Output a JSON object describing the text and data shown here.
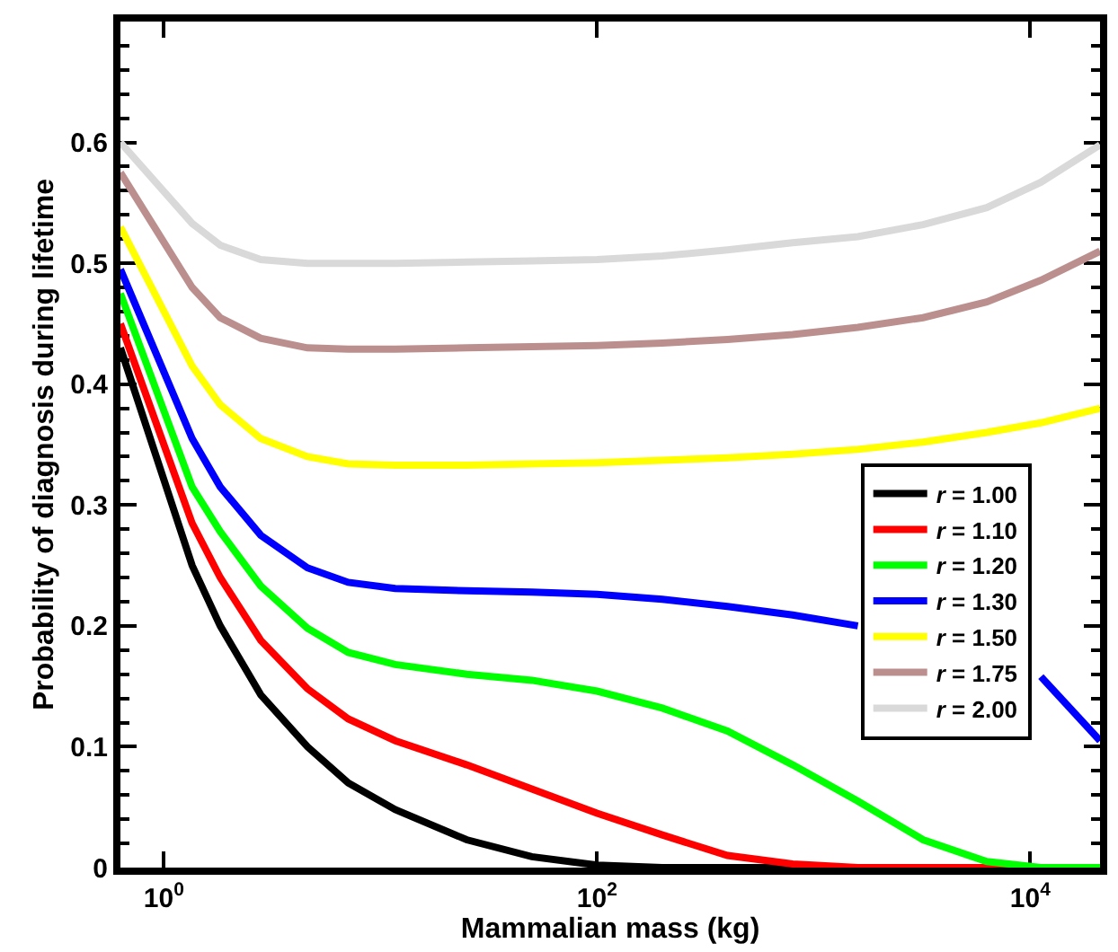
{
  "chart_data": {
    "type": "line",
    "xlabel": "Mammalian mass (kg)",
    "ylabel": "Probability of diagnosis during lifetime",
    "x": [
      0.63,
      1.35,
      1.82,
      2.8,
      4.6,
      7.1,
      11.7,
      25,
      50,
      100,
      200,
      400,
      800,
      1600,
      3200,
      6300,
      11200,
      21000
    ],
    "series": [
      {
        "name": "r = 1.00",
        "color": "#000000",
        "values": [
          0.43,
          0.25,
          0.2,
          0.143,
          0.1,
          0.07,
          0.048,
          0.023,
          0.009,
          0.002,
          0,
          0,
          0,
          0,
          0,
          0,
          0,
          0
        ]
      },
      {
        "name": "r = 1.10",
        "color": "#ff0000",
        "values": [
          0.45,
          0.285,
          0.24,
          0.188,
          0.148,
          0.123,
          0.105,
          0.085,
          0.065,
          0.045,
          0.027,
          0.01,
          0.003,
          0,
          0,
          0,
          0,
          0
        ]
      },
      {
        "name": "r = 1.20",
        "color": "#00ff00",
        "values": [
          0.475,
          0.315,
          0.278,
          0.233,
          0.198,
          0.178,
          0.168,
          0.16,
          0.155,
          0.146,
          0.132,
          0.113,
          0.085,
          0.055,
          0.023,
          0.005,
          0,
          0
        ]
      },
      {
        "name": "r = 1.30",
        "color": "#0000ff",
        "values": [
          0.495,
          0.355,
          0.315,
          0.275,
          0.248,
          0.236,
          0.231,
          0.229,
          0.228,
          0.226,
          0.222,
          0.216,
          0.209,
          0.2,
          null,
          null,
          0.158,
          0.105
        ]
      },
      {
        "name": "r = 1.50",
        "color": "#ffff00",
        "values": [
          0.53,
          0.415,
          0.383,
          0.355,
          0.34,
          0.334,
          0.333,
          0.333,
          0.334,
          0.335,
          0.337,
          0.339,
          0.342,
          0.346,
          0.352,
          0.36,
          0.368,
          0.38
        ]
      },
      {
        "name": "r = 1.75",
        "color": "#bc8f8f",
        "values": [
          0.575,
          0.48,
          0.455,
          0.438,
          0.43,
          0.429,
          0.429,
          0.43,
          0.431,
          0.432,
          0.434,
          0.437,
          0.441,
          0.447,
          0.455,
          0.468,
          0.486,
          0.51
        ]
      },
      {
        "name": "r = 2.00",
        "color": "#d9d9d9",
        "values": [
          0.6,
          0.533,
          0.515,
          0.503,
          0.5,
          0.5,
          0.5,
          0.501,
          0.502,
          0.503,
          0.506,
          0.511,
          0.517,
          0.522,
          0.532,
          0.546,
          0.567,
          0.598
        ]
      }
    ],
    "log": "x",
    "xlim": [
      0.63,
      21000
    ],
    "xticks": [
      {
        "value": 1,
        "label": "10$^{0}$"
      },
      {
        "value": 100,
        "label": "10$^{2}$"
      },
      {
        "value": 10000,
        "label": "10$^{4}$"
      }
    ],
    "ylim": [
      0,
      0.7
    ],
    "yticks": [
      0,
      0.1,
      0.2,
      0.3,
      0.4,
      0.5,
      0.6
    ],
    "legend": "right",
    "marker": "none",
    "line_style": "solid"
  }
}
